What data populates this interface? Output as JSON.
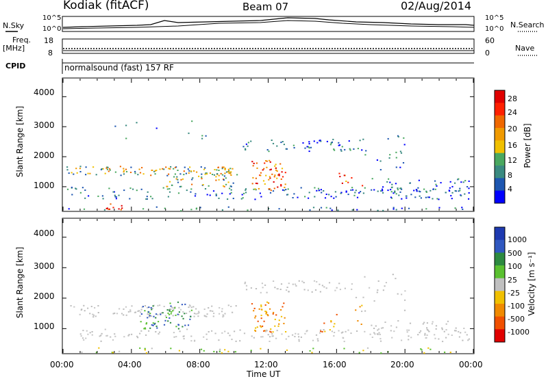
{
  "header": {
    "station": "Kodiak (fitACF)",
    "beam": "Beam 07",
    "date": "02/Aug/2014"
  },
  "summary_panels": {
    "nsky_label": "N.Sky",
    "nsearch_label": "N.Search",
    "noise_ticks": [
      "10^5",
      "10^0"
    ],
    "freq_label": "Freq.",
    "freq_unit": "[MHz]",
    "freq_ticks": [
      "18",
      "8"
    ],
    "nave_label": "Nave",
    "nave_ticks": [
      "60",
      "0"
    ],
    "cpid_label": "CPID",
    "cpid_text": "normalsound (fast) 157 RF"
  },
  "colors": {
    "power_scale": [
      "#0000ff",
      "#1d56b0",
      "#3a8a80",
      "#4aa860",
      "#f0c000",
      "#f09a00",
      "#f06800",
      "#ff2000",
      "#e00000"
    ],
    "velocity_scale": [
      "#1e3ab0",
      "#3058c0",
      "#2d8a40",
      "#5ac030",
      "#c0c0c0",
      "#f0c000",
      "#f08a00",
      "#f05000",
      "#e00000"
    ]
  },
  "chart_data": [
    {
      "type": "heatmap",
      "title": "Power",
      "ylabel": "Slant Range [km]",
      "colorbar_label": "Power [dB]",
      "colorbar_ticks": [
        "28",
        "24",
        "20",
        "16",
        "12",
        "8",
        "4"
      ],
      "ylim": [
        200,
        4600
      ],
      "y_ticks": [
        "4000",
        "3000",
        "2000",
        "1000"
      ],
      "xlim_hours": [
        0,
        24
      ]
    },
    {
      "type": "heatmap",
      "title": "Velocity",
      "ylabel": "Slant Range [km]",
      "colorbar_label": "Velocity [m s⁻¹]",
      "colorbar_ticks": [
        "1000",
        "500",
        "100",
        "25",
        "-25",
        "-100",
        "-500",
        "-1000"
      ],
      "ylim": [
        200,
        4600
      ],
      "y_ticks": [
        "4000",
        "3000",
        "2000",
        "1000"
      ],
      "xlim_hours": [
        0,
        24
      ]
    }
  ],
  "x_axis": {
    "ticks": [
      "00:00",
      "04:00",
      "08:00",
      "12:00",
      "16:00",
      "20:00",
      "00:00"
    ],
    "label": "Time UT"
  }
}
